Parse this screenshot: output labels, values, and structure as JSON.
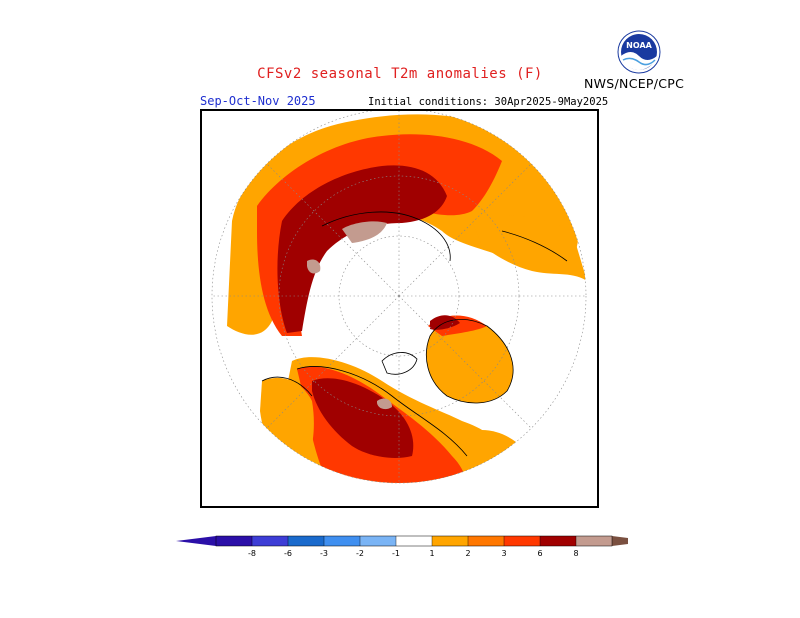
{
  "header": {
    "title": "CFSv2 seasonal T2m anomalies (F)",
    "season": "Sep-Oct-Nov 2025",
    "initial_conditions": "Initial conditions: 30Apr2025-9May2025",
    "agency": "NWS/NCEP/CPC",
    "logo_text": "NOAA"
  },
  "colors": {
    "neg8": "#2b0fa8",
    "neg6": "#3d3dd6",
    "neg3": "#1a6acc",
    "neg2": "#3f8ff0",
    "neg1": "#7ab4f5",
    "zero": "#ffffff",
    "pos1": "#ffa500",
    "pos2": "#ff7700",
    "pos3": "#ff3800",
    "pos6": "#a00000",
    "pos8": "#c39b8f",
    "pos8plus": "#7a5040",
    "land_outline": "#000000",
    "title": "#e02020",
    "season": "#2030d0"
  },
  "legend": {
    "tick_labels": [
      "-8",
      "-6",
      "-3",
      "-2",
      "-1",
      "1",
      "2",
      "3",
      "6",
      "8"
    ]
  }
}
